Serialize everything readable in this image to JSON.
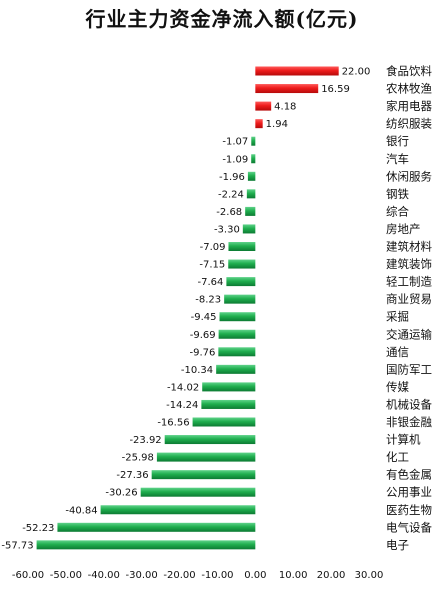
{
  "chart_data": {
    "type": "bar",
    "orientation": "horizontal",
    "title": "行业主力资金净流入额(亿元)",
    "xlim": [
      -60,
      30
    ],
    "x_ticks": [
      "-60.00",
      "-50.00",
      "-40.00",
      "-30.00",
      "-20.00",
      "-10.00",
      "0.00",
      "10.00",
      "20.00",
      "30.00"
    ],
    "grid": false,
    "legend": "none",
    "colors": {
      "positive": "#e8131b",
      "negative": "#16a34a"
    },
    "categories": [
      "食品饮料",
      "农林牧渔",
      "家用电器",
      "纺织服装",
      "银行",
      "汽车",
      "休闲服务",
      "钢铁",
      "综合",
      "房地产",
      "建筑材料",
      "建筑装饰",
      "轻工制造",
      "商业贸易",
      "采掘",
      "交通运输",
      "通信",
      "国防军工",
      "传媒",
      "机械设备",
      "非银金融",
      "计算机",
      "化工",
      "有色金属",
      "公用事业",
      "医药生物",
      "电气设备",
      "电子"
    ],
    "values": [
      22.0,
      16.59,
      4.18,
      1.94,
      -1.07,
      -1.09,
      -1.96,
      -2.24,
      -2.68,
      -3.3,
      -7.09,
      -7.15,
      -7.64,
      -8.23,
      -9.45,
      -9.69,
      -9.76,
      -10.34,
      -14.02,
      -14.24,
      -16.56,
      -23.92,
      -25.98,
      -27.36,
      -30.26,
      -40.84,
      -52.23,
      -57.73
    ],
    "value_labels": [
      "22.00",
      "16.59",
      "4.18",
      "1.94",
      "-1.07",
      "-1.09",
      "-1.96",
      "-2.24",
      "-2.68",
      "-3.30",
      "-7.09",
      "-7.15",
      "-7.64",
      "-8.23",
      "-9.45",
      "-9.69",
      "-9.76",
      "-10.34",
      "-14.02",
      "-14.24",
      "-16.56",
      "-23.92",
      "-25.98",
      "-27.36",
      "-30.26",
      "-40.84",
      "-52.23",
      "-57.73"
    ]
  }
}
